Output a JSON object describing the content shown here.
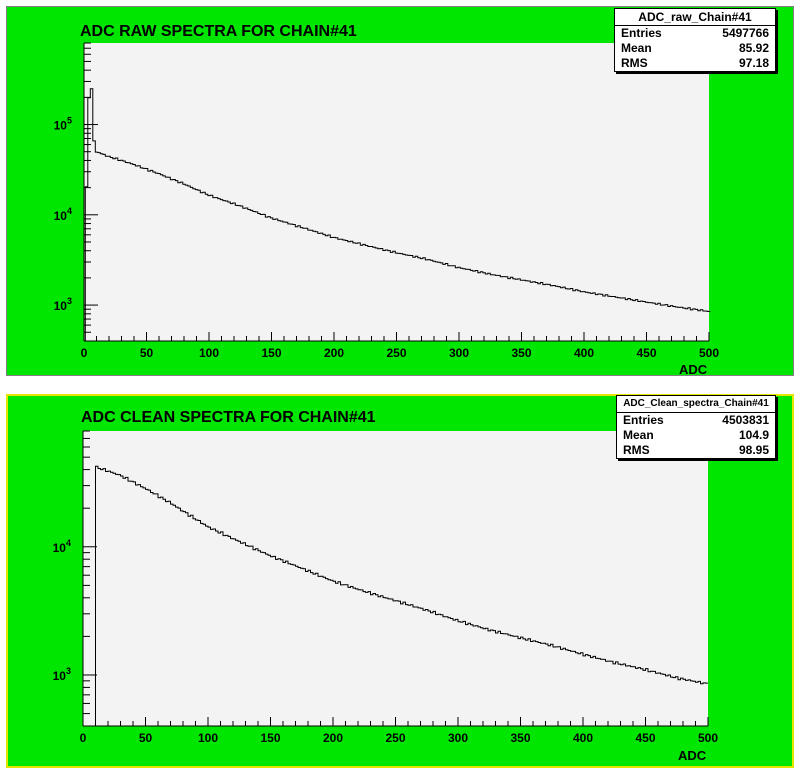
{
  "chart_data": [
    {
      "type": "histogram",
      "title": "ADC RAW SPECTRA FOR CHAIN#41",
      "xlabel": "ADC",
      "ylabel": "",
      "xlim": [
        0,
        500
      ],
      "ylim": [
        400,
        800000
      ],
      "yscale": "log",
      "grid": false,
      "x_ticks": [
        "0",
        "50",
        "100",
        "150",
        "200",
        "250",
        "300",
        "350",
        "400",
        "450",
        "500"
      ],
      "y_ticks": [
        {
          "base": "10",
          "exp": "3"
        },
        {
          "base": "10",
          "exp": "4"
        },
        {
          "base": "10",
          "exp": "5"
        }
      ],
      "stats": {
        "name": "ADC_raw_Chain#41",
        "entries_label": "Entries",
        "entries": "5497766",
        "mean_label": "Mean",
        "mean": "85.92",
        "rms_label": "RMS",
        "rms": "97.18"
      },
      "series": [
        {
          "x": [
            1,
            2,
            3,
            4,
            5,
            6,
            7,
            8,
            9,
            10,
            20,
            30,
            40,
            50,
            60,
            70,
            80,
            90,
            100,
            125,
            150,
            175,
            200,
            225,
            250,
            275,
            300,
            325,
            350,
            375,
            400,
            425,
            450,
            475,
            500
          ],
          "y": [
            5000,
            20000,
            60000,
            200000,
            400000,
            250000,
            110000,
            65000,
            55000,
            50000,
            44000,
            40000,
            36000,
            32000,
            28500,
            25000,
            22000,
            19000,
            16500,
            12500,
            9200,
            7200,
            5600,
            4600,
            3800,
            3200,
            2600,
            2200,
            1900,
            1650,
            1400,
            1230,
            1080,
            950,
            850
          ]
        }
      ]
    },
    {
      "type": "histogram",
      "title": "ADC CLEAN SPECTRA FOR CHAIN#41",
      "xlabel": "ADC",
      "ylabel": "",
      "xlim": [
        0,
        500
      ],
      "ylim": [
        400,
        80000
      ],
      "yscale": "log",
      "grid": false,
      "x_ticks": [
        "0",
        "50",
        "100",
        "150",
        "200",
        "250",
        "300",
        "350",
        "400",
        "450",
        "500"
      ],
      "y_ticks": [
        {
          "base": "10",
          "exp": "3"
        },
        {
          "base": "10",
          "exp": "4"
        }
      ],
      "stats": {
        "name": "ADC_Clean_spectra_Chain#41",
        "entries_label": "Entries",
        "entries": "4503831",
        "mean_label": "Mean",
        "mean": "104.9",
        "rms_label": "RMS",
        "rms": "98.95"
      },
      "series": [
        {
          "x": [
            10,
            20,
            30,
            40,
            50,
            60,
            70,
            80,
            90,
            100,
            125,
            150,
            175,
            200,
            225,
            250,
            275,
            300,
            325,
            350,
            375,
            400,
            425,
            450,
            475,
            500
          ],
          "y": [
            42000,
            39000,
            36000,
            32000,
            28500,
            25000,
            22000,
            19000,
            16500,
            14300,
            11000,
            8500,
            6800,
            5400,
            4500,
            3800,
            3200,
            2650,
            2250,
            1950,
            1700,
            1450,
            1250,
            1100,
            950,
            850
          ]
        }
      ]
    }
  ]
}
